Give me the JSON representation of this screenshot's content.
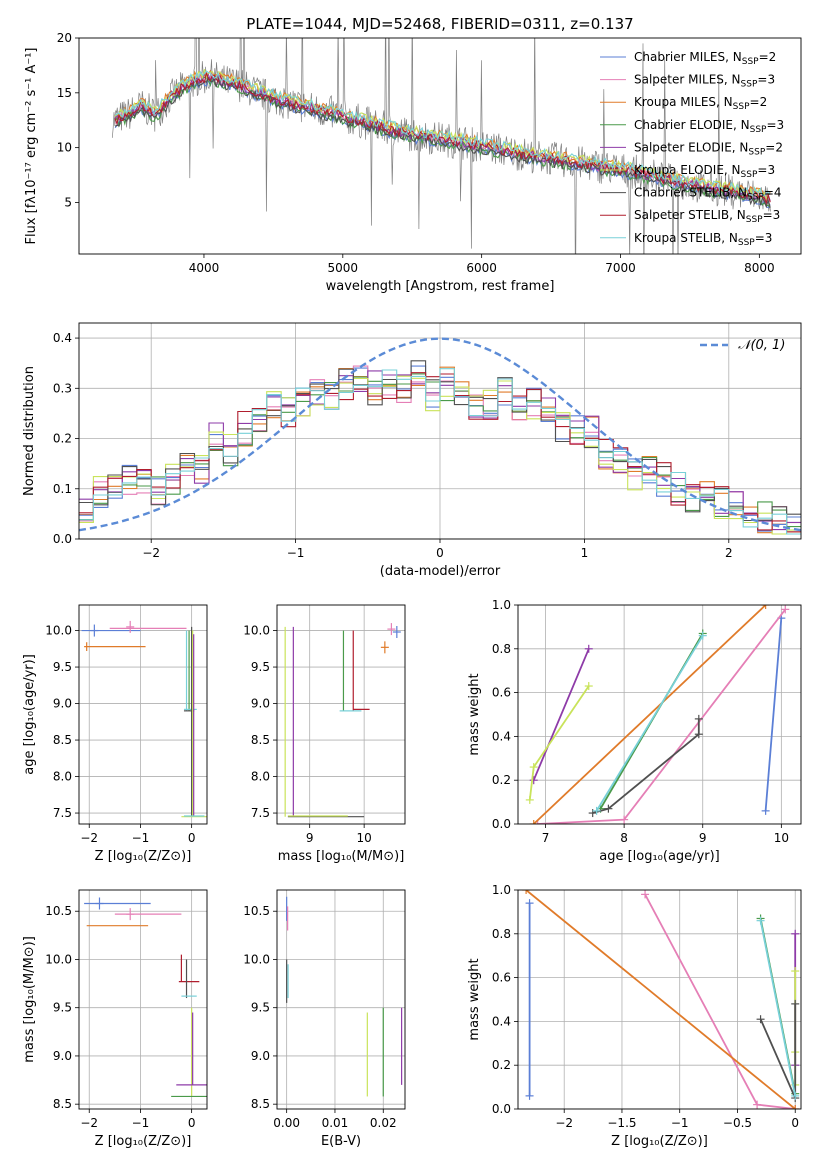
{
  "figure": {
    "title": "PLATE=1044, MJD=52468, FIBERID=0311, z=0.137"
  },
  "colors": {
    "chabrier_miles": "#5b7fd6",
    "salpeter_miles": "#e57fb6",
    "kroupa_miles": "#e07b2a",
    "chabrier_elodie": "#4a9a4a",
    "salpeter_elodie": "#8e3ba8",
    "kroupa_elodie": "#c9e35a",
    "chabrier_stelib": "#505050",
    "salpeter_stelib": "#b01e2e",
    "kroupa_stelib": "#78d0d8",
    "data": "#808080",
    "grid": "#b0b0b0",
    "gauss": "#5b8bd6"
  },
  "chart_data": [
    {
      "id": "spectrum",
      "type": "line",
      "xlabel": "wavelength [Angstrom, rest frame]",
      "ylabel": "Flux [fλ10⁻¹⁷ erg cm⁻² s⁻¹ A⁻¹]",
      "xlim": [
        3100,
        8300
      ],
      "ylim": [
        0.3,
        20
      ],
      "xticks": [
        4000,
        5000,
        6000,
        7000,
        8000
      ],
      "yticks": [
        5,
        10,
        15,
        20
      ],
      "legend_position": "top-right",
      "legend": [
        {
          "label": "Chabrier MILES, NSSP=2",
          "color": "#5b7fd6"
        },
        {
          "label": "Salpeter MILES, NSSP=3",
          "color": "#e57fb6"
        },
        {
          "label": "Kroupa MILES, NSSP=2",
          "color": "#e07b2a"
        },
        {
          "label": "Chabrier ELODIE, NSSP=3",
          "color": "#4a9a4a"
        },
        {
          "label": "Salpeter ELODIE, NSSP=2",
          "color": "#8e3ba8"
        },
        {
          "label": "Kroupa ELODIE, NSSP=3",
          "color": "#c9e35a"
        },
        {
          "label": "Chabrier STELIB, NSSP=4",
          "color": "#505050"
        },
        {
          "label": "Salpeter STELIB, NSSP=3",
          "color": "#b01e2e"
        },
        {
          "label": "Kroupa STELIB, NSSP=3",
          "color": "#78d0d8"
        }
      ],
      "model_continuum": {
        "x": [
          3350,
          3450,
          3550,
          3650,
          3750,
          3850,
          3950,
          4050,
          4150,
          4250,
          4350,
          4500,
          4700,
          4900,
          5100,
          5300,
          5500,
          5700,
          5900,
          6100,
          6300,
          6500,
          6700,
          6900,
          7100,
          7300,
          7500,
          7700,
          7900,
          8070
        ],
        "y": [
          12.5,
          13.0,
          13.8,
          13.0,
          14.5,
          15.5,
          16.2,
          16.5,
          16.0,
          15.8,
          15.2,
          14.5,
          13.8,
          13.2,
          12.5,
          11.8,
          11.2,
          10.8,
          10.4,
          9.9,
          9.4,
          9.0,
          8.6,
          8.2,
          7.8,
          7.2,
          6.6,
          6.2,
          5.8,
          5.3
        ]
      }
    },
    {
      "id": "residuals",
      "type": "histogram",
      "xlabel": "(data-model)/error",
      "ylabel": "Normed distribution",
      "xlim": [
        -2.5,
        2.5
      ],
      "ylim": [
        0,
        0.43
      ],
      "xticks": [
        -2,
        -1,
        0,
        1,
        2
      ],
      "yticks": [
        0.0,
        0.1,
        0.2,
        0.3,
        0.4
      ],
      "legend_position": "top-right",
      "legend": [
        {
          "label": "𝒩(0, 1)",
          "style": "dashed"
        }
      ],
      "bin_width": 0.1,
      "bin_start": -2.5,
      "series": [
        {
          "color": "#e07b2a",
          "values": [
            0.05,
            0.09,
            0.13,
            0.1,
            0.12,
            0.14,
            0.12,
            0.1,
            0.12,
            0.13,
            0.15,
            0.14,
            0.17,
            0.2,
            0.18,
            0.22,
            0.25,
            0.24,
            0.27,
            0.26,
            0.25,
            0.28,
            0.28,
            0.3,
            0.29,
            0.31,
            0.3,
            0.32,
            0.3,
            0.29,
            0.31,
            0.3,
            0.33,
            0.3,
            0.29,
            0.31,
            0.28,
            0.3,
            0.27,
            0.27,
            0.28,
            0.29,
            0.26,
            0.26,
            0.27,
            0.25,
            0.22,
            0.24,
            0.22,
            0.21,
            0.19,
            0.17,
            0.16,
            0.15,
            0.13,
            0.14,
            0.12,
            0.11,
            0.1,
            0.08,
            0.07,
            0.09,
            0.07,
            0.06,
            0.05,
            0.05,
            0.04,
            0.04,
            0.03,
            0.03
          ]
        }
      ]
    },
    {
      "id": "age_vs_Z",
      "type": "errorbar",
      "xlabel": "Z [log₁₀(Z/Z⊙)]",
      "ylabel": "age  [log₁₀(age/yr)]",
      "xlim": [
        -2.2,
        0.3
      ],
      "ylim": [
        7.35,
        10.35
      ],
      "xticks": [
        -2,
        -1,
        0
      ],
      "yticks": [
        7.5,
        8.0,
        8.5,
        9.0,
        9.5,
        10.0
      ]
    },
    {
      "id": "age_vs_mass",
      "type": "errorbar",
      "xlabel": "mass [log₁₀(M/M⊙)]",
      "xlim": [
        8.4,
        10.75
      ],
      "ylim": [
        7.35,
        10.35
      ],
      "xticks": [
        9,
        10
      ],
      "yticks": [
        7.5,
        8.0,
        8.5,
        9.0,
        9.5,
        10.0
      ]
    },
    {
      "id": "weight_vs_age",
      "type": "line",
      "xlabel": "age  [log₁₀(age/yr)]",
      "ylabel": "mass weight",
      "xlim": [
        6.65,
        10.25
      ],
      "ylim": [
        0,
        1
      ],
      "xticks": [
        7,
        8,
        9,
        10
      ],
      "yticks": [
        0.0,
        0.2,
        0.4,
        0.6,
        0.8,
        1.0
      ],
      "series": [
        {
          "color": "#5b7fd6",
          "x": [
            9.8,
            10.0
          ],
          "y": [
            0.06,
            0.94
          ]
        },
        {
          "color": "#e57fb6",
          "x": [
            6.9,
            8.0,
            10.05
          ],
          "y": [
            0.0,
            0.02,
            0.98
          ]
        },
        {
          "color": "#e07b2a",
          "x": [
            6.85,
            9.8
          ],
          "y": [
            0.0,
            1.0
          ]
        },
        {
          "color": "#4a9a4a",
          "x": [
            7.7,
            9.0
          ],
          "y": [
            0.07,
            0.87
          ]
        },
        {
          "color": "#8e3ba8",
          "x": [
            6.85,
            7.55
          ],
          "y": [
            0.2,
            0.8
          ]
        },
        {
          "color": "#c9e35a",
          "x": [
            6.8,
            6.85,
            7.55
          ],
          "y": [
            0.11,
            0.26,
            0.63
          ]
        },
        {
          "color": "#505050",
          "x": [
            7.6,
            7.8,
            8.95,
            8.95
          ],
          "y": [
            0.05,
            0.07,
            0.41,
            0.48
          ]
        },
        {
          "color": "#78d0d8",
          "x": [
            7.65,
            9.0
          ],
          "y": [
            0.06,
            0.86
          ]
        }
      ]
    },
    {
      "id": "mass_vs_Z",
      "type": "errorbar",
      "xlabel": "Z [log₁₀(Z/Z⊙)]",
      "ylabel": "mass [log₁₀(M/M⊙)]",
      "xlim": [
        -2.2,
        0.3
      ],
      "ylim": [
        8.45,
        10.72
      ],
      "xticks": [
        -2,
        -1,
        0
      ],
      "yticks": [
        8.5,
        9.0,
        9.5,
        10.0,
        10.5
      ]
    },
    {
      "id": "mass_vs_EBV",
      "type": "errorbar",
      "xlabel": "E(B-V)",
      "xlim": [
        -0.002,
        0.0245
      ],
      "ylim": [
        8.45,
        10.72
      ],
      "xticks": [
        0.0,
        0.01,
        0.02
      ],
      "xtick_labels": [
        "0.00",
        "0.01",
        "0.02"
      ],
      "yticks": [
        8.5,
        9.0,
        9.5,
        10.0,
        10.5
      ]
    },
    {
      "id": "weight_vs_Z",
      "type": "line",
      "xlabel": "Z [log₁₀(Z/Z⊙)]",
      "ylabel": "mass weight",
      "xlim": [
        -2.4,
        0.05
      ],
      "ylim": [
        0,
        1
      ],
      "xticks": [
        -2.0,
        -1.5,
        -1.0,
        -0.5,
        0.0
      ],
      "yticks": [
        0.0,
        0.2,
        0.4,
        0.6,
        0.8,
        1.0
      ],
      "series": [
        {
          "color": "#5b7fd6",
          "x": [
            -2.3,
            -2.3
          ],
          "y": [
            0.06,
            0.94
          ]
        },
        {
          "color": "#e57fb6",
          "x": [
            -1.3,
            -0.33,
            0.0
          ],
          "y": [
            0.98,
            0.02,
            0.0
          ]
        },
        {
          "color": "#e07b2a",
          "x": [
            -2.33,
            0.0
          ],
          "y": [
            1.0,
            0.0
          ]
        },
        {
          "color": "#4a9a4a",
          "x": [
            -0.3,
            0.0
          ],
          "y": [
            0.87,
            0.07
          ]
        },
        {
          "color": "#8e3ba8",
          "x": [
            0.0,
            0.0
          ],
          "y": [
            0.2,
            0.8
          ]
        },
        {
          "color": "#c9e35a",
          "x": [
            0.0,
            0.0,
            0.0
          ],
          "y": [
            0.11,
            0.26,
            0.63
          ]
        },
        {
          "color": "#505050",
          "x": [
            -0.3,
            0.0,
            0.0
          ],
          "y": [
            0.41,
            0.05,
            0.48
          ]
        },
        {
          "color": "#78d0d8",
          "x": [
            -0.3,
            0.0
          ],
          "y": [
            0.86,
            0.06
          ]
        }
      ]
    }
  ]
}
